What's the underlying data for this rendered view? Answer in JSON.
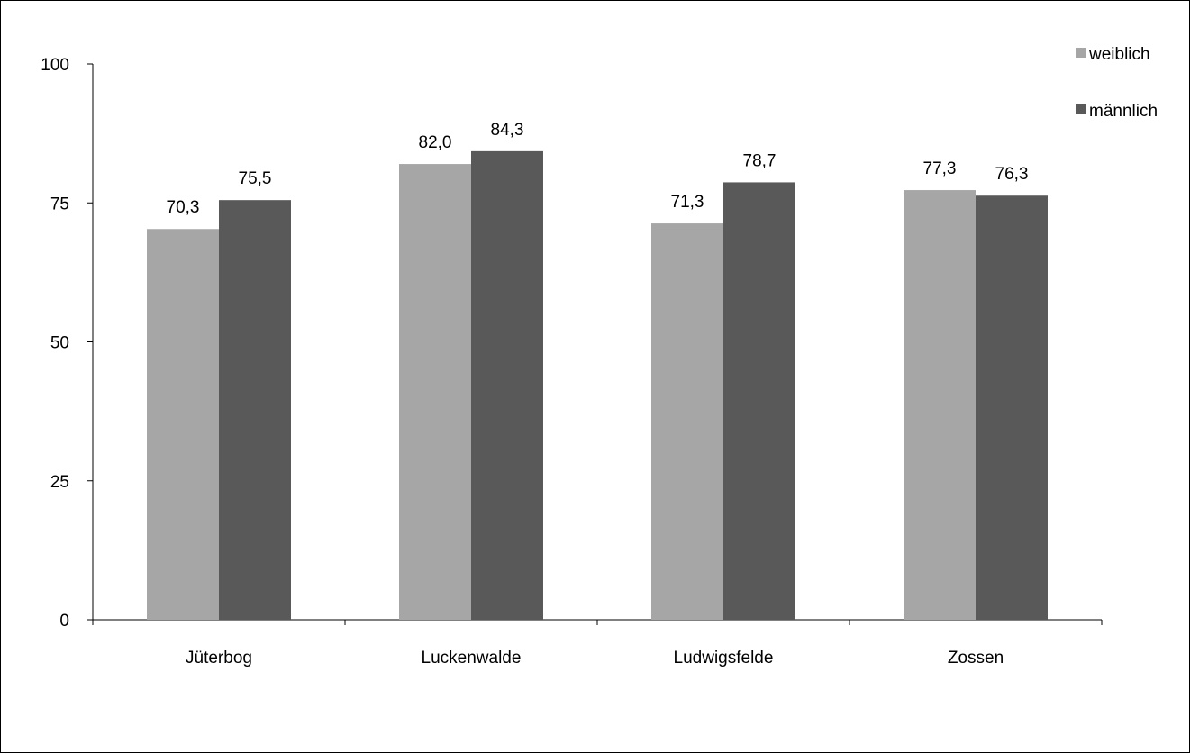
{
  "chart_data": {
    "type": "bar",
    "categories": [
      "Jüterbog",
      "Luckenwalde",
      "Ludwigsfelde",
      "Zossen"
    ],
    "series": [
      {
        "name": "weiblich",
        "values": [
          70.3,
          82.0,
          71.3,
          77.3
        ],
        "labels": [
          "70,3",
          "82,0",
          "71,3",
          "77,3"
        ],
        "color": "#a6a6a6"
      },
      {
        "name": "männlich",
        "values": [
          75.5,
          84.3,
          78.7,
          76.3
        ],
        "labels": [
          "75,5",
          "84,3",
          "78,7",
          "76,3"
        ],
        "color": "#595959"
      }
    ],
    "y_ticks": [
      0,
      25,
      50,
      75,
      100
    ],
    "ylim": [
      0,
      100
    ],
    "grid": false,
    "legend_position": "top-right"
  }
}
